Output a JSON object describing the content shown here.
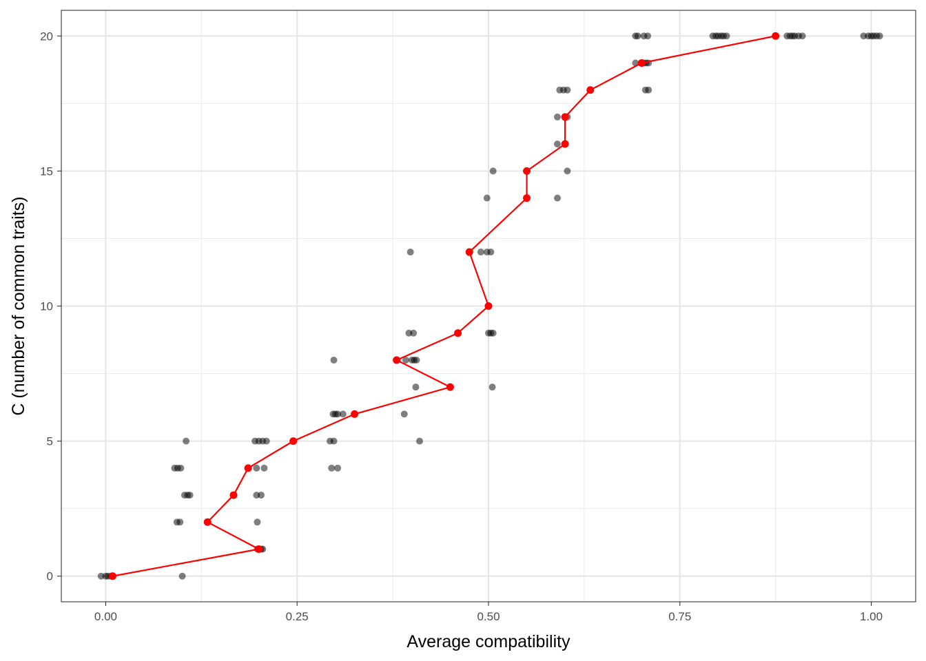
{
  "chart_data": {
    "type": "scatter",
    "xlabel": "Average compatibility",
    "ylabel": "C (number of common traits)",
    "xlim": [
      -0.058,
      1.058
    ],
    "ylim": [
      -0.95,
      20.95
    ],
    "x_ticks": [
      0,
      0.25,
      0.5,
      0.75,
      1.0
    ],
    "x_tick_labels": [
      "0.00",
      "0.25",
      "0.50",
      "0.75",
      "1.00"
    ],
    "y_ticks": [
      0,
      5,
      10,
      15,
      20
    ],
    "y_tick_labels": [
      "0",
      "5",
      "10",
      "15",
      "20"
    ],
    "grid": true,
    "legend": "none",
    "colors": {
      "points": "#000000",
      "mean_line": "#ff0000"
    },
    "series": [
      {
        "kind": "points",
        "points": [
          [
            -0.006,
            0
          ],
          [
            0.0,
            0
          ],
          [
            0.003,
            0
          ],
          [
            0.007,
            0
          ],
          [
            0.009,
            0
          ],
          [
            0.1,
            0
          ],
          [
            0.198,
            1
          ],
          [
            0.203,
            1
          ],
          [
            0.205,
            1
          ],
          [
            0.093,
            2
          ],
          [
            0.097,
            2
          ],
          [
            0.198,
            2
          ],
          [
            0.103,
            3
          ],
          [
            0.107,
            3
          ],
          [
            0.11,
            3
          ],
          [
            0.197,
            3
          ],
          [
            0.203,
            3
          ],
          [
            0.09,
            4
          ],
          [
            0.094,
            4
          ],
          [
            0.098,
            4
          ],
          [
            0.197,
            4
          ],
          [
            0.207,
            4
          ],
          [
            0.295,
            4
          ],
          [
            0.303,
            4
          ],
          [
            0.105,
            5
          ],
          [
            0.195,
            5
          ],
          [
            0.2,
            5
          ],
          [
            0.205,
            5
          ],
          [
            0.21,
            5
          ],
          [
            0.293,
            5
          ],
          [
            0.298,
            5
          ],
          [
            0.41,
            5
          ],
          [
            0.297,
            6
          ],
          [
            0.3,
            6
          ],
          [
            0.303,
            6
          ],
          [
            0.31,
            6
          ],
          [
            0.39,
            6
          ],
          [
            0.405,
            7
          ],
          [
            0.505,
            7
          ],
          [
            0.298,
            8
          ],
          [
            0.392,
            8
          ],
          [
            0.4,
            8
          ],
          [
            0.403,
            8
          ],
          [
            0.406,
            8
          ],
          [
            0.396,
            9
          ],
          [
            0.402,
            9
          ],
          [
            0.5,
            9
          ],
          [
            0.503,
            9
          ],
          [
            0.506,
            9
          ],
          [
            0.398,
            12
          ],
          [
            0.49,
            12
          ],
          [
            0.498,
            12
          ],
          [
            0.503,
            12
          ],
          [
            0.498,
            14
          ],
          [
            0.59,
            14
          ],
          [
            0.506,
            15
          ],
          [
            0.603,
            15
          ],
          [
            0.59,
            16
          ],
          [
            0.59,
            17
          ],
          [
            0.6,
            17
          ],
          [
            0.603,
            17
          ],
          [
            0.593,
            18
          ],
          [
            0.598,
            18
          ],
          [
            0.603,
            18
          ],
          [
            0.705,
            18
          ],
          [
            0.709,
            18
          ],
          [
            0.692,
            19
          ],
          [
            0.703,
            19
          ],
          [
            0.706,
            19
          ],
          [
            0.709,
            19
          ],
          [
            0.692,
            20
          ],
          [
            0.695,
            20
          ],
          [
            0.703,
            20
          ],
          [
            0.708,
            20
          ],
          [
            0.793,
            20
          ],
          [
            0.797,
            20
          ],
          [
            0.8,
            20
          ],
          [
            0.804,
            20
          ],
          [
            0.807,
            20
          ],
          [
            0.811,
            20
          ],
          [
            0.89,
            20
          ],
          [
            0.894,
            20
          ],
          [
            0.897,
            20
          ],
          [
            0.9,
            20
          ],
          [
            0.905,
            20
          ],
          [
            0.91,
            20
          ],
          [
            0.99,
            20
          ],
          [
            0.996,
            20
          ],
          [
            1.0,
            20
          ],
          [
            1.003,
            20
          ],
          [
            1.007,
            20
          ],
          [
            1.011,
            20
          ]
        ]
      },
      {
        "kind": "line",
        "points": [
          [
            0.009,
            0
          ],
          [
            0.2,
            1
          ],
          [
            0.133,
            2
          ],
          [
            0.167,
            3
          ],
          [
            0.186,
            4
          ],
          [
            0.245,
            5
          ],
          [
            0.325,
            6
          ],
          [
            0.45,
            7
          ],
          [
            0.38,
            8
          ],
          [
            0.46,
            9
          ],
          [
            0.5,
            10
          ],
          [
            0.475,
            12
          ],
          [
            0.55,
            14
          ],
          [
            0.55,
            15
          ],
          [
            0.6,
            16
          ],
          [
            0.6,
            17
          ],
          [
            0.633,
            18
          ],
          [
            0.7,
            19
          ],
          [
            0.875,
            20
          ]
        ]
      }
    ]
  }
}
